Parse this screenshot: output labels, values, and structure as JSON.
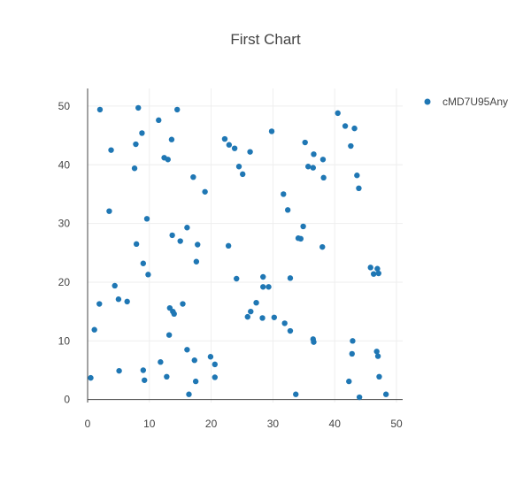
{
  "chart_data": {
    "type": "scatter",
    "title": "First Chart",
    "xlabel": "",
    "ylabel": "",
    "xlim": [
      0,
      51
    ],
    "ylim": [
      -0.5,
      53
    ],
    "x_ticks": [
      "0",
      "10",
      "20",
      "30",
      "40",
      "50"
    ],
    "y_ticks": [
      "0",
      "10",
      "20",
      "30",
      "40",
      "50"
    ],
    "grid": true,
    "legend_position": "top-right",
    "series": [
      {
        "name": "cMD7U95Any",
        "color": "#1f77b4",
        "x": [
          2,
          8.2,
          11.5,
          14.5,
          29.8,
          40.5,
          41.7,
          43.2,
          3.8,
          7.8,
          8.8,
          13.6,
          12.4,
          13.0,
          7.6,
          17.1,
          19,
          22.2,
          22.9,
          23.8,
          24.5,
          25.1,
          26.3,
          35.2,
          36.6,
          35.7,
          36.5,
          38.1,
          42.6,
          43.6,
          38.2,
          43.9,
          31.7,
          32.4,
          3.5,
          9.6,
          16.1,
          13.7,
          15,
          17.8,
          7.9,
          22.8,
          34.9,
          34.1,
          34.5,
          38,
          9,
          9.8,
          17.6,
          24.1,
          28.4,
          28.4,
          29.3,
          32.8,
          45.8,
          46.3,
          46.9,
          47.1,
          4.4,
          1.9,
          5,
          6.4,
          13.3,
          13.8,
          14,
          15.4,
          27.3,
          26.4,
          25.9,
          28.3,
          30.2,
          31.9,
          32.8,
          36.6,
          36.5,
          13.2,
          42.9,
          1.1,
          16.1,
          42.8,
          17.3,
          19.9,
          20.6,
          11.8,
          5.1,
          9.0,
          12.8,
          9.2,
          20.6,
          17.5,
          16.4,
          33.7,
          42.3,
          47.2,
          46.8,
          47.0,
          48.3,
          44.0,
          0.5
        ],
        "y": [
          49.4,
          49.7,
          47.6,
          49.4,
          45.7,
          48.8,
          46.6,
          46.2,
          42.5,
          43.5,
          45.4,
          44.3,
          41.2,
          40.9,
          39.4,
          37.9,
          35.4,
          44.4,
          43.4,
          42.8,
          39.7,
          38.4,
          42.2,
          43.8,
          41.8,
          39.7,
          39.5,
          40.9,
          43.2,
          38.2,
          37.8,
          36,
          35,
          32.3,
          32.1,
          30.8,
          29.3,
          28,
          27,
          26.4,
          26.5,
          26.2,
          29.5,
          27.5,
          27.4,
          26,
          23.2,
          21.3,
          23.5,
          20.6,
          20.9,
          19.2,
          19.2,
          20.7,
          22.5,
          21.4,
          22.3,
          21.5,
          19.4,
          16.3,
          17.1,
          16.7,
          15.6,
          15,
          14.6,
          16.3,
          16.5,
          15,
          14.1,
          13.9,
          14,
          13,
          11.7,
          9.8,
          10.3,
          11,
          10,
          11.9,
          8.5,
          7.8,
          6.7,
          7.3,
          6,
          6.4,
          4.9,
          5,
          3.9,
          3.3,
          3.8,
          3.1,
          0.9,
          0.9,
          3.1,
          3.9,
          8.2,
          7.4,
          0.9,
          0.4,
          3.7
        ]
      }
    ]
  }
}
